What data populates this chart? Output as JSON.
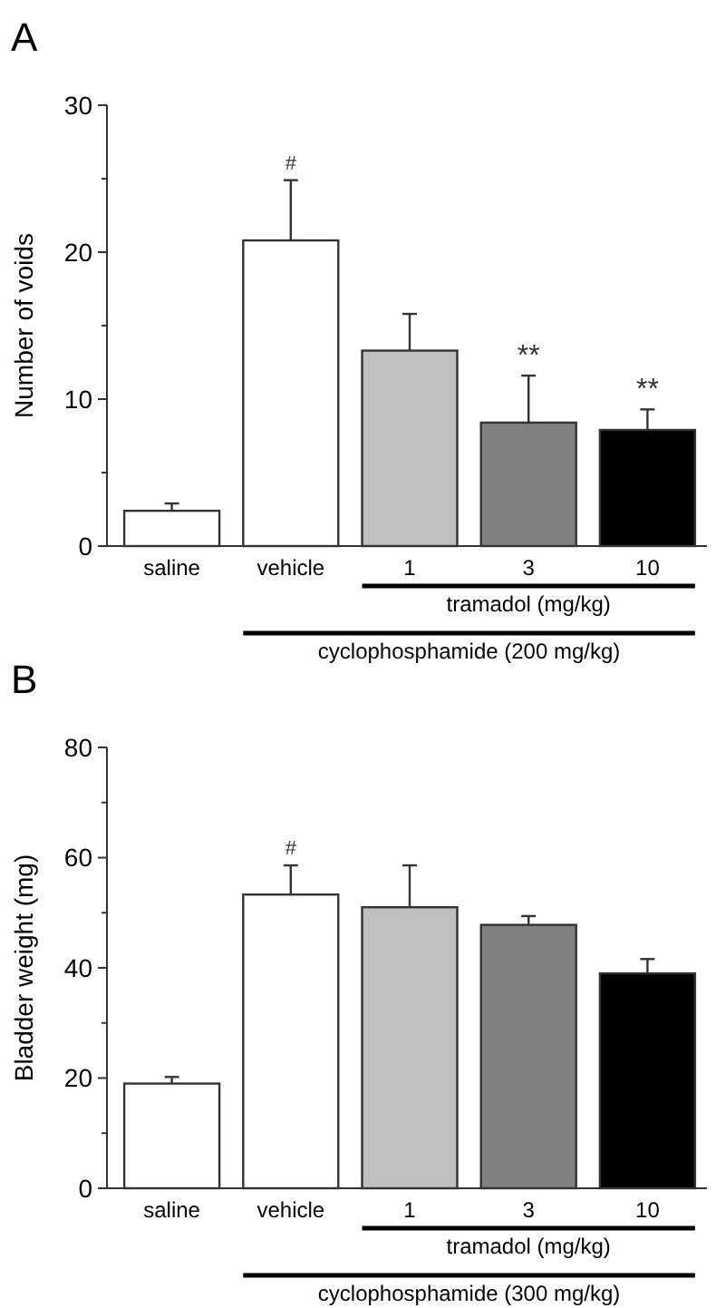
{
  "chart_data": [
    {
      "type": "bar",
      "title": "A",
      "ylabel": "Number of voids",
      "categories": [
        "saline",
        "vehicle",
        "1",
        "3",
        "10"
      ],
      "values": [
        2.4,
        20.8,
        13.3,
        8.4,
        7.9
      ],
      "errors": [
        [
          2.4,
          2.9
        ],
        [
          20.8,
          24.9
        ],
        [
          13.3,
          15.8
        ],
        [
          8.4,
          11.6
        ],
        [
          7.9,
          9.3
        ]
      ],
      "colors": [
        "#ffffff",
        "#ffffff",
        "#c0c0c0",
        "#808080",
        "#000000"
      ],
      "ylim": [
        0,
        30
      ],
      "yticks": [
        0,
        {
          "value": 5,
          "label": null
        },
        10,
        {
          "value": 15,
          "label": null
        },
        20,
        {
          "value": 25,
          "label": null
        },
        30
      ],
      "grid": false,
      "annotations": [
        {
          "text": "#",
          "x": "vehicle",
          "y": 24.9
        },
        {
          "text": "**",
          "x": "3",
          "y": 11.6
        },
        {
          "text": "**",
          "x": "10",
          "y": 9.3
        },
        "tramadol (mg/kg)",
        "cyclophosphamide (200 mg/kg)"
      ]
    },
    {
      "type": "bar",
      "title": "B",
      "ylabel": "Bladder weight (mg)",
      "categories": [
        "saline",
        "vehicle",
        "1",
        "3",
        "10"
      ],
      "values": [
        19,
        53.3,
        51,
        47.8,
        39
      ],
      "errors": [
        [
          19,
          20.2
        ],
        [
          53.3,
          58.6
        ],
        [
          51,
          58.6
        ],
        [
          47.8,
          49.4
        ],
        [
          39,
          41.6
        ]
      ],
      "colors": [
        "#ffffff",
        "#ffffff",
        "#c0c0c0",
        "#808080",
        "#000000"
      ],
      "ylim": [
        0,
        80
      ],
      "yticks": [
        0,
        {
          "value": 10,
          "label": null
        },
        20,
        {
          "value": 30,
          "label": null
        },
        40,
        {
          "value": 50,
          "label": null
        },
        60,
        {
          "value": 70,
          "label": null
        },
        80
      ],
      "grid": false,
      "annotations": [
        {
          "text": "#",
          "x": "vehicle",
          "y": 58.6
        },
        "tramadol (mg/kg)",
        "cyclophosphamide (300 mg/kg)"
      ]
    }
  ]
}
